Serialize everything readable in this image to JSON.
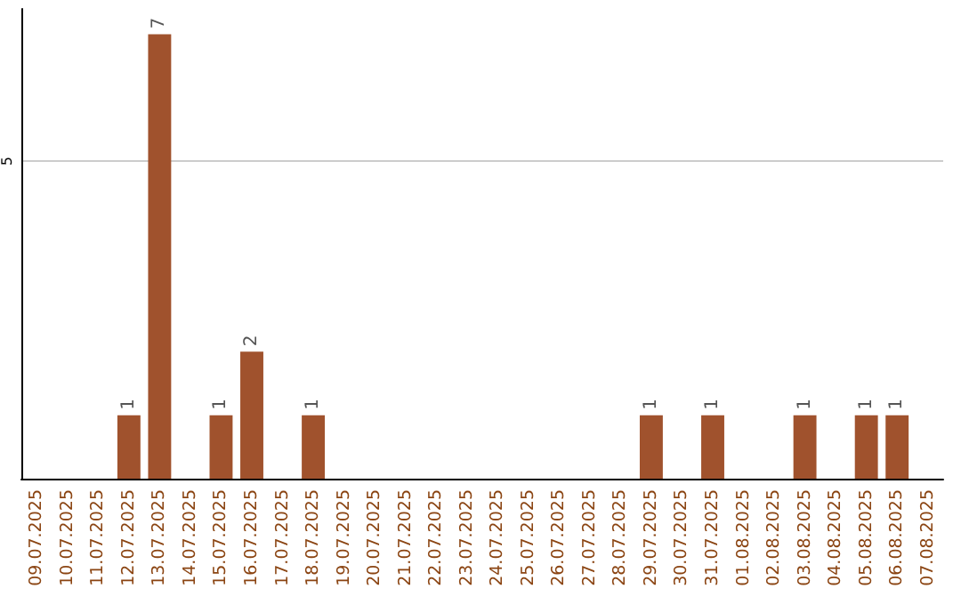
{
  "chart_data": {
    "type": "bar",
    "categories": [
      "09.07.2025",
      "10.07.2025",
      "11.07.2025",
      "12.07.2025",
      "13.07.2025",
      "14.07.2025",
      "15.07.2025",
      "16.07.2025",
      "17.07.2025",
      "18.07.2025",
      "19.07.2025",
      "20.07.2025",
      "21.07.2025",
      "22.07.2025",
      "23.07.2025",
      "24.07.2025",
      "25.07.2025",
      "26.07.2025",
      "27.07.2025",
      "28.07.2025",
      "29.07.2025",
      "30.07.2025",
      "31.07.2025",
      "01.08.2025",
      "02.08.2025",
      "03.08.2025",
      "04.08.2025",
      "05.08.2025",
      "06.08.2025",
      "07.08.2025"
    ],
    "values": [
      0,
      0,
      0,
      1,
      7,
      0,
      1,
      2,
      0,
      1,
      0,
      0,
      0,
      0,
      0,
      0,
      0,
      0,
      0,
      0,
      1,
      0,
      1,
      0,
      0,
      1,
      0,
      1,
      1,
      0
    ],
    "value_labels": [
      null,
      null,
      null,
      "1",
      "7",
      null,
      "1",
      "2",
      null,
      "1",
      null,
      null,
      null,
      null,
      null,
      null,
      null,
      null,
      null,
      null,
      "1",
      null,
      "1",
      null,
      null,
      "1",
      null,
      "1",
      "1",
      null
    ],
    "color": "#a0522d",
    "ylim": [
      0,
      7.4
    ],
    "yticks": [
      5
    ],
    "grid": "y"
  }
}
